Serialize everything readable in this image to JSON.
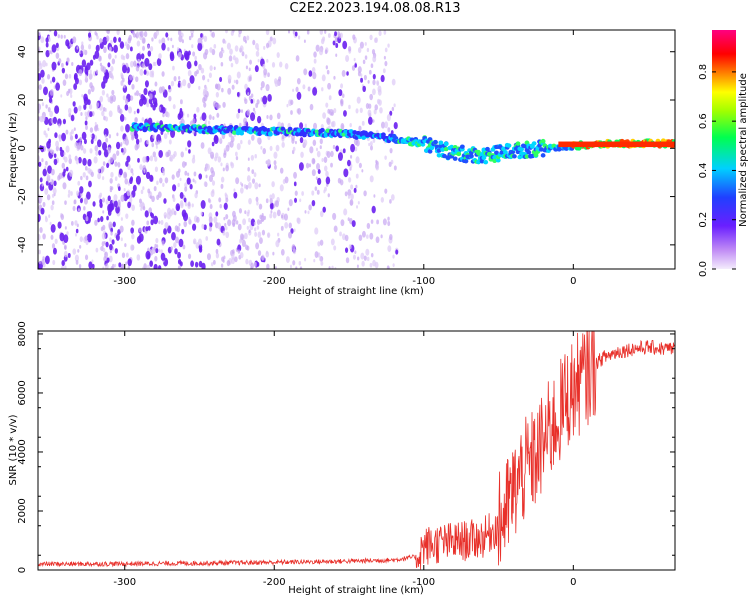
{
  "title": "C2E2.2023.194.08.08.R13",
  "colors": {
    "snr_line": "#e8302a",
    "spectrogram_weak": "#c9a8f0",
    "spectrogram_mid": "#7a2df0",
    "axis": "#000000"
  },
  "chart_data": [
    {
      "type": "heatmap",
      "xlabel": "Height of straight line (km)",
      "ylabel": "Frequency (Hz)",
      "xlim": [
        -358,
        68
      ],
      "ylim": [
        -50,
        49
      ],
      "xticks": [
        "-300",
        "-200",
        "-100",
        "0"
      ],
      "yticks": [
        "-40",
        "-20",
        "0",
        "20",
        "40"
      ],
      "colorbar": {
        "label": "Normalized spectral amplitude",
        "range": [
          0,
          0.97
        ],
        "ticks": [
          "0.0",
          "0.2",
          "0.4",
          "0.6",
          "0.8"
        ]
      },
      "signal_trace": {
        "description_points": [
          {
            "x": -300,
            "y": 9
          },
          {
            "x": -250,
            "y": 8
          },
          {
            "x": -200,
            "y": 7
          },
          {
            "x": -150,
            "y": 6
          },
          {
            "x": -120,
            "y": 4
          },
          {
            "x": -100,
            "y": 2
          },
          {
            "x": -80,
            "y": -2
          },
          {
            "x": -60,
            "y": -3
          },
          {
            "x": -40,
            "y": -1
          },
          {
            "x": -20,
            "y": 0
          },
          {
            "x": 0,
            "y": 1
          },
          {
            "x": 30,
            "y": 2
          },
          {
            "x": 68,
            "y": 2
          }
        ]
      }
    },
    {
      "type": "line",
      "xlabel": "Height of straight line (km)",
      "ylabel": "SNR (10 * v/v)",
      "xlim": [
        -358,
        68
      ],
      "ylim": [
        0,
        8100
      ],
      "xticks": [
        "-300",
        "-200",
        "-100",
        "0"
      ],
      "yticks": [
        "0",
        "2000",
        "4000",
        "6000",
        "8000"
      ],
      "series": [
        {
          "x": [
            -358,
            -300,
            -250,
            -200,
            -150,
            -120,
            -105,
            -100,
            -90,
            -80,
            -70,
            -60,
            -50,
            -45,
            -40,
            -35,
            -30,
            -25,
            -20,
            -15,
            -10,
            -5,
            0,
            5,
            10,
            15,
            20,
            30,
            40,
            50,
            60,
            68
          ],
          "y": [
            200,
            210,
            230,
            260,
            300,
            340,
            450,
            800,
            900,
            950,
            1000,
            1100,
            1500,
            2000,
            2600,
            3200,
            3500,
            3800,
            4300,
            4800,
            5200,
            5800,
            6100,
            6400,
            6700,
            7000,
            7200,
            7400,
            7500,
            7550,
            7500,
            7500
          ]
        }
      ]
    }
  ]
}
